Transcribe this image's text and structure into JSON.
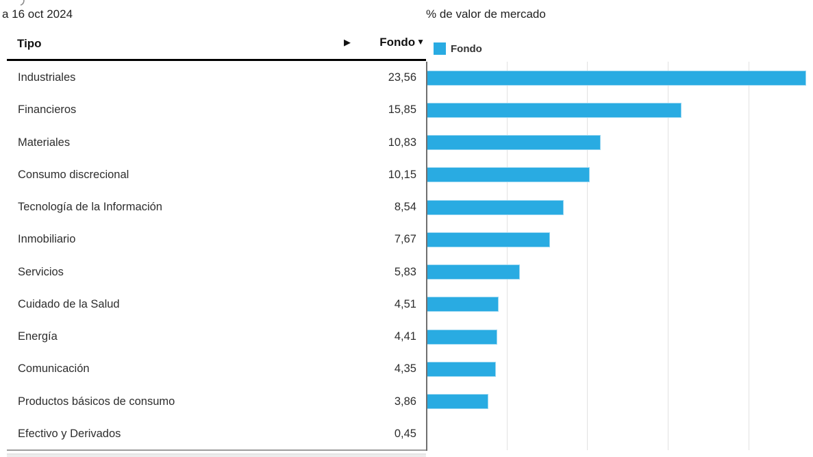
{
  "header": {
    "as_of_date": "a 16 oct 2024",
    "chart_title": "% de valor de mercado",
    "type_column_label": "Tipo",
    "expand_icon": "▶",
    "fund_column_label": "Fondo",
    "sort_icon": "▼",
    "legend": {
      "label": "Fondo",
      "color": "#29ABE2"
    }
  },
  "table": {
    "rows": [
      {
        "tipo": "Industriales",
        "fondo": "23,56"
      },
      {
        "tipo": "Financieros",
        "fondo": "15,85"
      },
      {
        "tipo": "Materiales",
        "fondo": "10,83"
      },
      {
        "tipo": "Consumo discrecional",
        "fondo": "10,15"
      },
      {
        "tipo": "Tecnología de la Información",
        "fondo": "8,54"
      },
      {
        "tipo": "Inmobiliario",
        "fondo": "7,67"
      },
      {
        "tipo": "Servicios",
        "fondo": "5,83"
      },
      {
        "tipo": "Cuidado de la Salud",
        "fondo": "4,51"
      },
      {
        "tipo": "Energía",
        "fondo": "4,41"
      },
      {
        "tipo": "Comunicación",
        "fondo": "4,35"
      },
      {
        "tipo": "Productos básicos de consumo",
        "fondo": "3,86"
      },
      {
        "tipo": "Efectivo y Derivados",
        "fondo": "0,45"
      }
    ]
  },
  "chart_data": {
    "type": "bar",
    "orientation": "horizontal",
    "title": "% de valor de mercado",
    "categories": [
      "Industriales",
      "Financieros",
      "Materiales",
      "Consumo discrecional",
      "Tecnología de la Información",
      "Inmobiliario",
      "Servicios",
      "Cuidado de la Salud",
      "Energía",
      "Comunicación",
      "Productos básicos de consumo",
      "Efectivo y Derivados"
    ],
    "series": [
      {
        "name": "Fondo",
        "values": [
          23.56,
          15.85,
          10.83,
          10.15,
          8.54,
          7.67,
          5.83,
          4.51,
          4.41,
          4.35,
          3.86,
          0.45
        ]
      }
    ],
    "xlim": [
      0,
      24
    ],
    "gridline_values": [
      5,
      10,
      15,
      20
    ],
    "grid": true,
    "legend_position": "top",
    "bar_color": "#29ABE2",
    "hidden_bar_indices": [
      11
    ]
  }
}
